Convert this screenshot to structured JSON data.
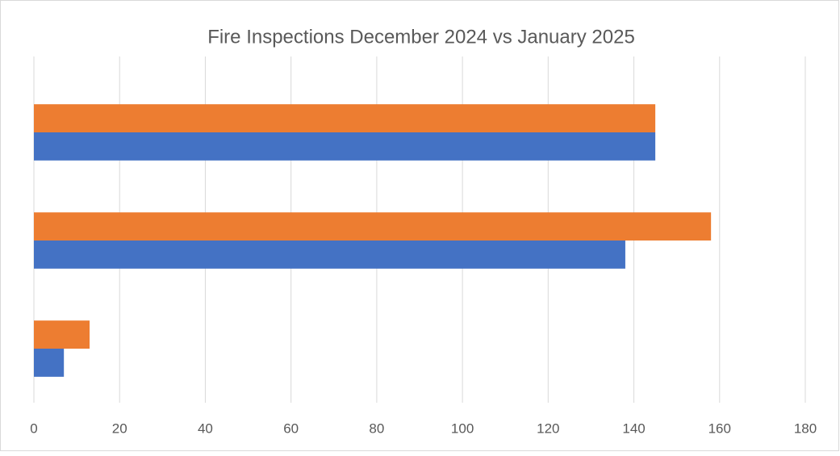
{
  "chart_data": {
    "type": "hbar",
    "title": "Fire Inspections December 2024 vs January 2025",
    "categories": [
      null,
      null,
      null
    ],
    "series": [
      {
        "color": "#4472c4",
        "values": [
          7,
          138,
          145
        ]
      },
      {
        "color": "#ed7d31",
        "values": [
          13,
          158,
          145
        ]
      }
    ],
    "xlim": [
      0,
      180
    ],
    "xticks": [
      0,
      20,
      40,
      60,
      80,
      100,
      120,
      140,
      160,
      180
    ],
    "grid": true
  }
}
